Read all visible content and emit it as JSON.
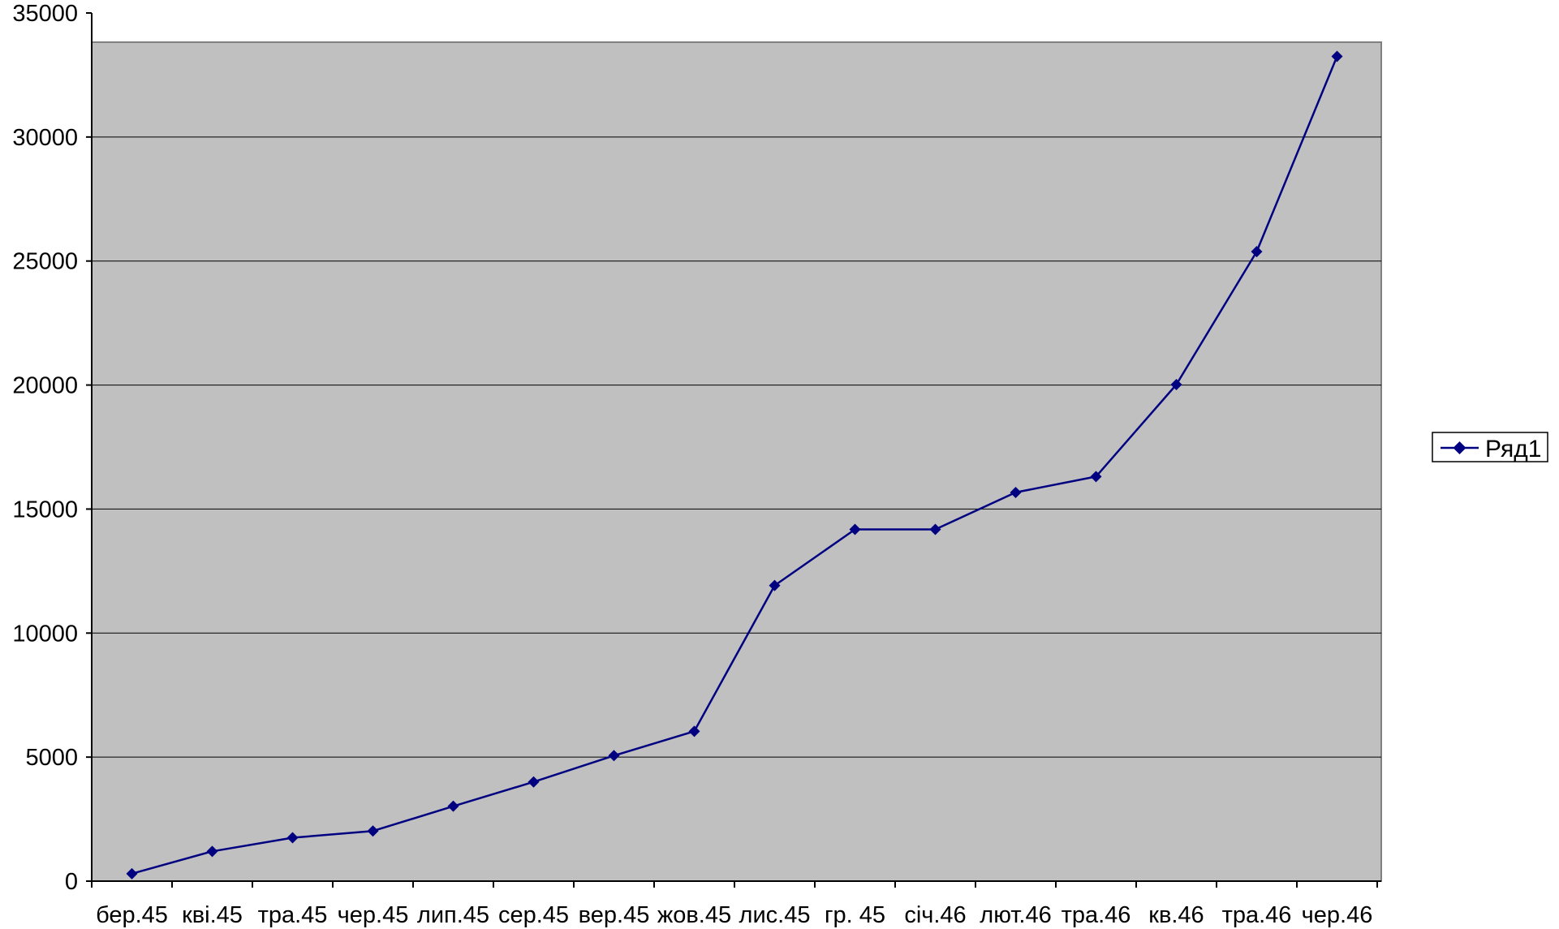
{
  "chart_data": {
    "type": "line",
    "categories": [
      "бер.45",
      "кві.45",
      "тра.45",
      "чер.45",
      "лип.45",
      "сер.45",
      "вер.45",
      "жов.45",
      "лис.45",
      "гр. 45",
      "січ.46",
      "лют.46",
      "тра.46",
      "кв.46",
      "тра.46",
      "чер.46"
    ],
    "series": [
      {
        "name": "Ряд1",
        "values": [
          300,
          1200,
          1750,
          2020,
          3020,
          4000,
          5060,
          6040,
          11920,
          14180,
          14180,
          15670,
          16310,
          20020,
          25380,
          33250
        ]
      }
    ],
    "ylim": [
      0,
      35000
    ],
    "yticks": [
      0,
      5000,
      10000,
      15000,
      20000,
      25000,
      30000,
      35000
    ],
    "grid": true,
    "legend": "right",
    "colors": {
      "plot_background": "#C0C0C0",
      "line": "#000080",
      "marker": "#000080",
      "grid": "#000000"
    }
  }
}
